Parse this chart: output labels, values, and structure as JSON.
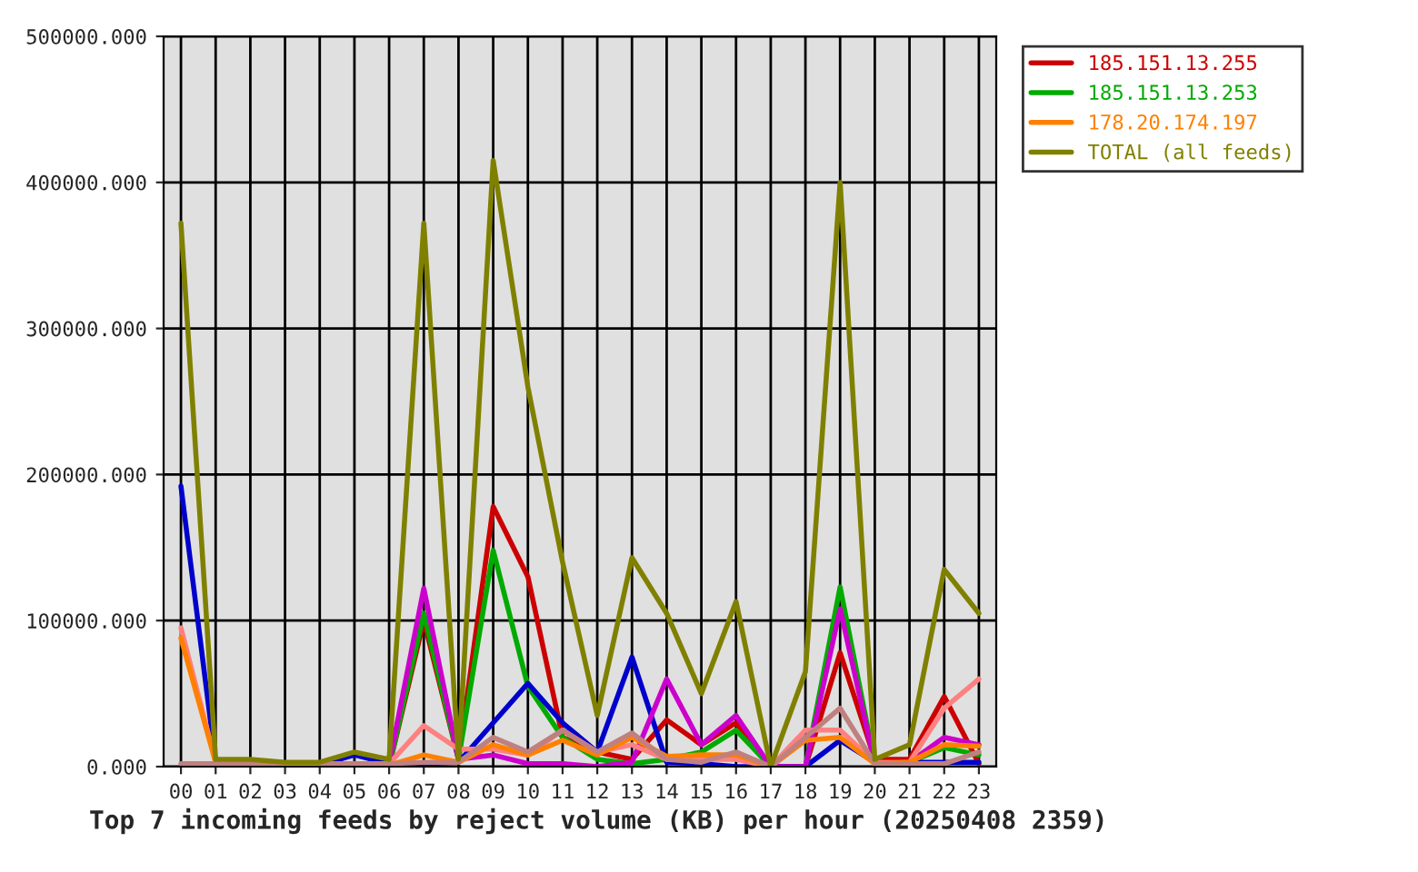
{
  "chart_data": {
    "type": "line",
    "title": "Top 7 incoming feeds by reject volume (KB) per hour (20250408 2359)",
    "categories": [
      "00",
      "01",
      "02",
      "03",
      "04",
      "05",
      "06",
      "07",
      "08",
      "09",
      "10",
      "11",
      "12",
      "13",
      "14",
      "15",
      "16",
      "17",
      "18",
      "19",
      "20",
      "21",
      "22",
      "23"
    ],
    "series": [
      {
        "name": "185.151.13.255",
        "color": "#cc0000",
        "values": [
          0,
          0,
          0,
          0,
          0,
          0,
          0,
          100000,
          5000,
          178000,
          130000,
          20000,
          10000,
          5000,
          32000,
          15000,
          30000,
          0,
          0,
          78000,
          5000,
          5000,
          48000,
          2000
        ]
      },
      {
        "name": "185.151.13.253",
        "color": "#00aa00",
        "values": [
          null,
          null,
          null,
          null,
          null,
          0,
          0,
          105000,
          5000,
          148000,
          55000,
          20000,
          5000,
          2000,
          5000,
          10000,
          25000,
          0,
          0,
          123000,
          2000,
          3000,
          13000,
          8000
        ]
      },
      {
        "color": "#0000cc",
        "values": [
          192000,
          3000,
          2000,
          1000,
          1000,
          8000,
          2000,
          2000,
          3000,
          30000,
          57000,
          30000,
          10000,
          75000,
          3000,
          2000,
          0,
          0,
          0,
          18000,
          3000,
          3000,
          3000,
          3000
        ]
      },
      {
        "color": "#cc00cc",
        "values": [
          null,
          null,
          null,
          null,
          null,
          2000,
          2000,
          122000,
          5000,
          8000,
          2000,
          2000,
          0,
          3000,
          60000,
          15000,
          35000,
          0,
          0,
          108000,
          2000,
          3000,
          20000,
          15000
        ]
      },
      {
        "color": "#ff8080",
        "values": [
          95000,
          3000,
          2000,
          2000,
          2000,
          2000,
          2000,
          28000,
          12000,
          12000,
          8000,
          25000,
          10000,
          15000,
          5000,
          5000,
          5000,
          0,
          25000,
          25000,
          3000,
          3000,
          40000,
          60000
        ]
      },
      {
        "name": "178.20.174.197",
        "color": "#ff8000",
        "values": [
          88000,
          3000,
          1000,
          1000,
          1000,
          1000,
          1000,
          8000,
          3000,
          15000,
          8000,
          18000,
          8000,
          20000,
          7000,
          8000,
          8000,
          0,
          18000,
          20000,
          2000,
          3000,
          15000,
          14000
        ]
      },
      {
        "color": "#c08080",
        "values": [
          2000,
          2000,
          2000,
          2000,
          2000,
          2000,
          2000,
          3000,
          3000,
          20000,
          10000,
          25000,
          10000,
          23000,
          5000,
          3000,
          10000,
          0,
          20000,
          40000,
          2000,
          2000,
          2000,
          10000
        ]
      },
      {
        "name": "TOTAL (all feeds)",
        "color": "#808000",
        "values": [
          372000,
          5000,
          5000,
          3000,
          3000,
          10000,
          5000,
          372000,
          5000,
          415000,
          260000,
          140000,
          35000,
          143000,
          105000,
          50000,
          113000,
          0,
          65000,
          400000,
          5000,
          15000,
          135000,
          105000
        ]
      }
    ],
    "ylim": [
      0,
      500000
    ],
    "yticks": [
      {
        "value": 0,
        "label": "0.000"
      },
      {
        "value": 100000,
        "label": "100000.000"
      },
      {
        "value": 200000,
        "label": "200000.000"
      },
      {
        "value": 300000,
        "label": "300000.000"
      },
      {
        "value": 400000,
        "label": "400000.000"
      },
      {
        "value": 500000,
        "label": "500000.000"
      }
    ],
    "grid": true,
    "legend": "right",
    "marker": "none",
    "line_style": "solid"
  }
}
